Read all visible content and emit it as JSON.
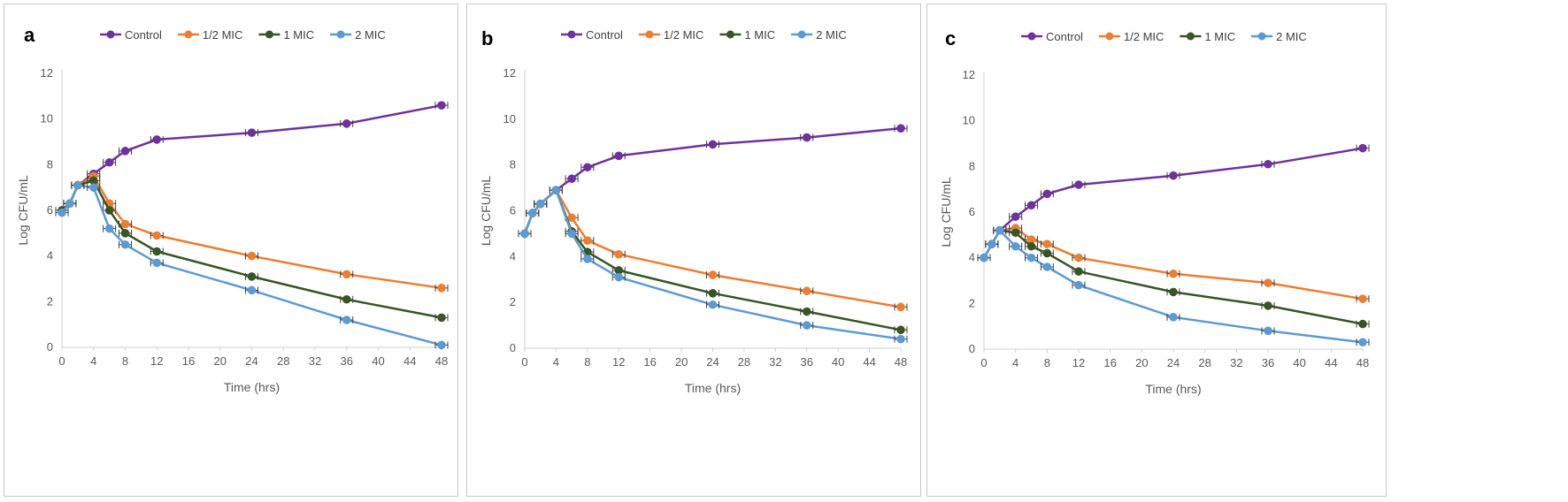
{
  "colors": {
    "Control": "#7030a0",
    "1/2 MIC": "#ed7d31",
    "1 MIC": "#375623",
    "2 MIC": "#5b9bd5"
  },
  "chart_data": [
    {
      "type": "line",
      "panel_label": "a",
      "xlabel": "Time (hrs)",
      "ylabel": "Log CFU/mL",
      "xlim": [
        0,
        48
      ],
      "ylim": [
        0,
        12
      ],
      "xticks": [
        0,
        4,
        8,
        12,
        16,
        20,
        24,
        28,
        32,
        36,
        40,
        44,
        48
      ],
      "yticks": [
        0,
        2,
        4,
        6,
        8,
        10,
        12
      ],
      "legend": [
        "Control",
        "1/2 MIC",
        "1 MIC",
        "2 MIC"
      ],
      "legend_position": "top",
      "series": [
        {
          "name": "Control",
          "x": [
            0,
            1,
            2,
            4,
            6,
            8,
            12,
            24,
            36,
            48
          ],
          "y": [
            6.0,
            6.3,
            7.1,
            7.6,
            8.1,
            8.6,
            9.1,
            9.4,
            9.8,
            10.6
          ]
        },
        {
          "name": "1/2 MIC",
          "x": [
            0,
            1,
            2,
            4,
            6,
            8,
            12,
            24,
            36,
            48
          ],
          "y": [
            6.0,
            6.3,
            7.1,
            7.5,
            6.3,
            5.4,
            4.9,
            4.0,
            3.2,
            2.6
          ]
        },
        {
          "name": "1 MIC",
          "x": [
            0,
            1,
            2,
            4,
            6,
            8,
            12,
            24,
            36,
            48
          ],
          "y": [
            6.0,
            6.3,
            7.1,
            7.3,
            6.0,
            5.0,
            4.2,
            3.1,
            2.1,
            1.3
          ]
        },
        {
          "name": "2 MIC",
          "x": [
            0,
            1,
            2,
            4,
            6,
            8,
            12,
            24,
            36,
            48
          ],
          "y": [
            5.9,
            6.3,
            7.1,
            7.0,
            5.2,
            4.5,
            3.7,
            2.5,
            1.2,
            0.1
          ]
        }
      ]
    },
    {
      "type": "line",
      "panel_label": "b",
      "xlabel": "Time (hrs)",
      "ylabel": "Log CFU/mL",
      "xlim": [
        0,
        48
      ],
      "ylim": [
        0,
        12
      ],
      "xticks": [
        0,
        4,
        8,
        12,
        16,
        20,
        24,
        28,
        32,
        36,
        40,
        44,
        48
      ],
      "yticks": [
        0,
        2,
        4,
        6,
        8,
        10,
        12
      ],
      "legend": [
        "Control",
        "1/2 MIC",
        "1 MIC",
        "2 MIC"
      ],
      "legend_position": "top",
      "series": [
        {
          "name": "Control",
          "x": [
            0,
            1,
            2,
            4,
            6,
            8,
            12,
            24,
            36,
            48
          ],
          "y": [
            5.0,
            5.9,
            6.3,
            6.9,
            7.4,
            7.9,
            8.4,
            8.9,
            9.2,
            9.6
          ]
        },
        {
          "name": "1/2 MIC",
          "x": [
            0,
            1,
            2,
            4,
            6,
            8,
            12,
            24,
            36,
            48
          ],
          "y": [
            5.0,
            5.9,
            6.3,
            6.9,
            5.7,
            4.7,
            4.1,
            3.2,
            2.5,
            1.8
          ]
        },
        {
          "name": "1 MIC",
          "x": [
            0,
            1,
            2,
            4,
            6,
            8,
            12,
            24,
            36,
            48
          ],
          "y": [
            5.0,
            5.9,
            6.3,
            6.9,
            5.1,
            4.2,
            3.4,
            2.4,
            1.6,
            0.8
          ]
        },
        {
          "name": "2 MIC",
          "x": [
            0,
            1,
            2,
            4,
            6,
            8,
            12,
            24,
            36,
            48
          ],
          "y": [
            5.0,
            5.9,
            6.3,
            6.9,
            5.0,
            3.9,
            3.1,
            1.9,
            1.0,
            0.4
          ]
        }
      ]
    },
    {
      "type": "line",
      "panel_label": "c",
      "xlabel": "Time (hrs)",
      "ylabel": "Log CFU/mL",
      "xlim": [
        0,
        48
      ],
      "ylim": [
        0,
        12
      ],
      "xticks": [
        0,
        4,
        8,
        12,
        16,
        20,
        24,
        28,
        32,
        36,
        40,
        44,
        48
      ],
      "yticks": [
        0,
        2,
        4,
        6,
        8,
        10,
        12
      ],
      "legend": [
        "Control",
        "1/2 MIC",
        "1 MIC",
        "2 MIC"
      ],
      "legend_position": "top",
      "series": [
        {
          "name": "Control",
          "x": [
            0,
            1,
            2,
            4,
            6,
            8,
            12,
            24,
            36,
            48
          ],
          "y": [
            4.0,
            4.6,
            5.2,
            5.8,
            6.3,
            6.8,
            7.2,
            7.6,
            8.1,
            8.8
          ]
        },
        {
          "name": "1/2 MIC",
          "x": [
            0,
            1,
            2,
            4,
            6,
            8,
            12,
            24,
            36,
            48
          ],
          "y": [
            4.0,
            4.6,
            5.2,
            5.3,
            4.8,
            4.6,
            4.0,
            3.3,
            2.9,
            2.2
          ]
        },
        {
          "name": "1 MIC",
          "x": [
            0,
            1,
            2,
            4,
            6,
            8,
            12,
            24,
            36,
            48
          ],
          "y": [
            4.0,
            4.6,
            5.2,
            5.1,
            4.5,
            4.2,
            3.4,
            2.5,
            1.9,
            1.1
          ]
        },
        {
          "name": "2 MIC",
          "x": [
            0,
            1,
            2,
            4,
            6,
            8,
            12,
            24,
            36,
            48
          ],
          "y": [
            4.0,
            4.6,
            5.2,
            4.5,
            4.0,
            3.6,
            2.8,
            1.4,
            0.8,
            0.3
          ]
        }
      ]
    }
  ]
}
